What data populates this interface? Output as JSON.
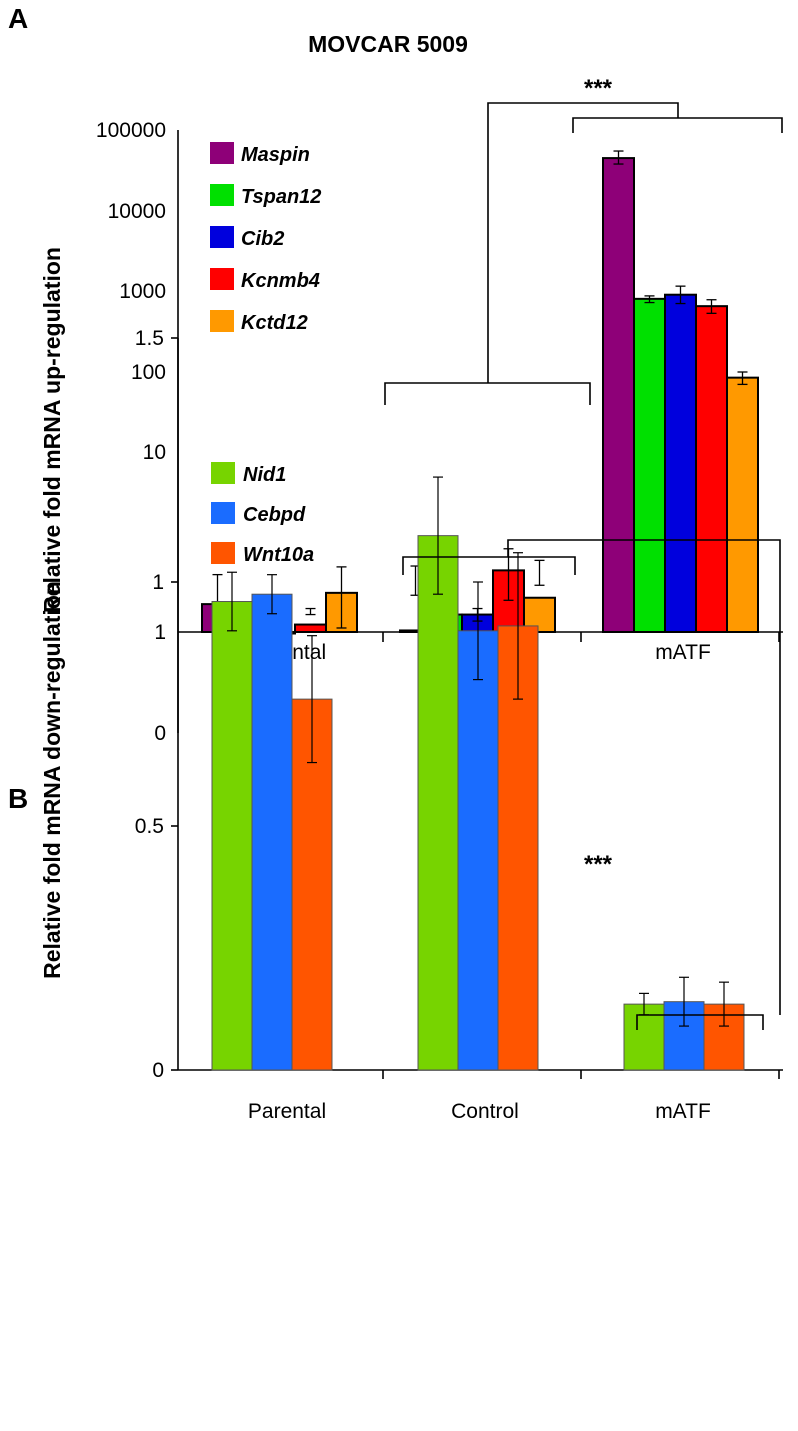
{
  "chart_data": [
    {
      "type": "bar",
      "panel_label": "A",
      "title": "MOVCAR 5009",
      "ylabel": "Relative fold mRNA up-regulation",
      "yscale": "log",
      "yticks": [
        "0",
        "1",
        "10",
        "100",
        "1000",
        "10000",
        "100000"
      ],
      "categories": [
        "Parental",
        "Control",
        "mATF"
      ],
      "significance": "***",
      "series": [
        {
          "name": "Maspin",
          "color": "#8e0078",
          "values": [
            0.7,
            1.02,
            45000
          ],
          "err_low": [
            0.48,
            0.43,
            38000
          ],
          "err_high": [
            0.95,
            1.6,
            55000
          ]
        },
        {
          "name": "Tspan12",
          "color": "#00e000",
          "values": [
            1.1,
            0.8,
            800
          ],
          "err_low": [
            1.0,
            0.78,
            720
          ],
          "err_high": [
            1.2,
            0.81,
            870
          ]
        },
        {
          "name": "Cib2",
          "color": "#0000dd",
          "values": [
            1.0,
            1.25,
            900
          ],
          "err_low": [
            1.0,
            1.15,
            700
          ],
          "err_high": [
            1.0,
            1.35,
            1150
          ]
        },
        {
          "name": "Kcnmb4",
          "color": "#ff0000",
          "values": [
            1.1,
            2.2,
            650
          ],
          "err_low": [
            0.8,
            1.5,
            530
          ],
          "err_high": [
            1.35,
            2.9,
            780
          ]
        },
        {
          "name": "Kctd12",
          "color": "#ff9900",
          "values": [
            1.65,
            1.55,
            85
          ],
          "err_low": [
            0.95,
            0.55,
            70
          ],
          "err_high": [
            2.3,
            2.5,
            100
          ]
        }
      ]
    },
    {
      "type": "bar",
      "panel_label": "B",
      "ylabel": "Relative fold mRNA down-regulation",
      "ylim": [
        0,
        1.5
      ],
      "yticks": [
        "0",
        "0.5",
        "1",
        "1.5"
      ],
      "categories": [
        "Parental",
        "Control",
        "mATF"
      ],
      "significance": "***",
      "series": [
        {
          "name": "Nid1",
          "color": "#77d400",
          "values": [
            0.96,
            1.095,
            0.135
          ],
          "errors": [
            0.06,
            0.12,
            0.022
          ]
        },
        {
          "name": "Cebpd",
          "color": "#1a6cff",
          "values": [
            0.975,
            0.9,
            0.14
          ],
          "errors": [
            0.04,
            0.1,
            0.05
          ]
        },
        {
          "name": "Wnt10a",
          "color": "#ff5500",
          "values": [
            0.76,
            0.91,
            0.135
          ],
          "errors": [
            0.13,
            0.15,
            0.045
          ]
        }
      ]
    }
  ]
}
